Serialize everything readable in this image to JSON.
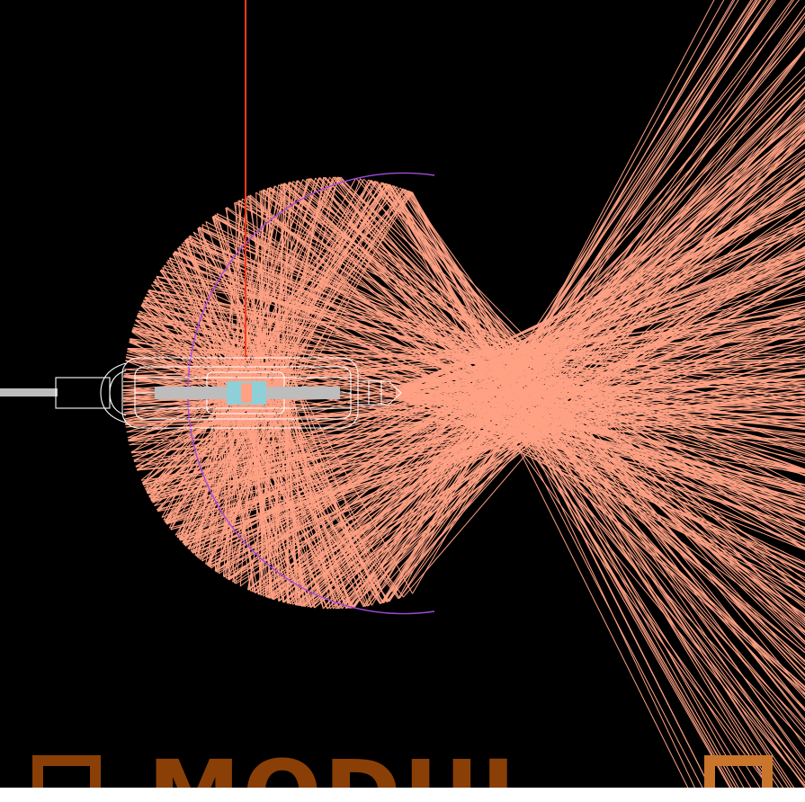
{
  "scene": {
    "background": "#000000",
    "reflector_color": "#a24bd8",
    "ray_color": "#ffa184",
    "lamp_wire_color": "#ffffff",
    "stem_color": "#bdbdbd",
    "core_color": "#8fd0d8",
    "vertical_ray_color": "#ff3b1a",
    "ray_count": 420
  },
  "watermark": {
    "text": "MODUL",
    "color": "#8a3f06",
    "icons": [
      "square-logo-icon",
      "square-logo-icon"
    ]
  }
}
